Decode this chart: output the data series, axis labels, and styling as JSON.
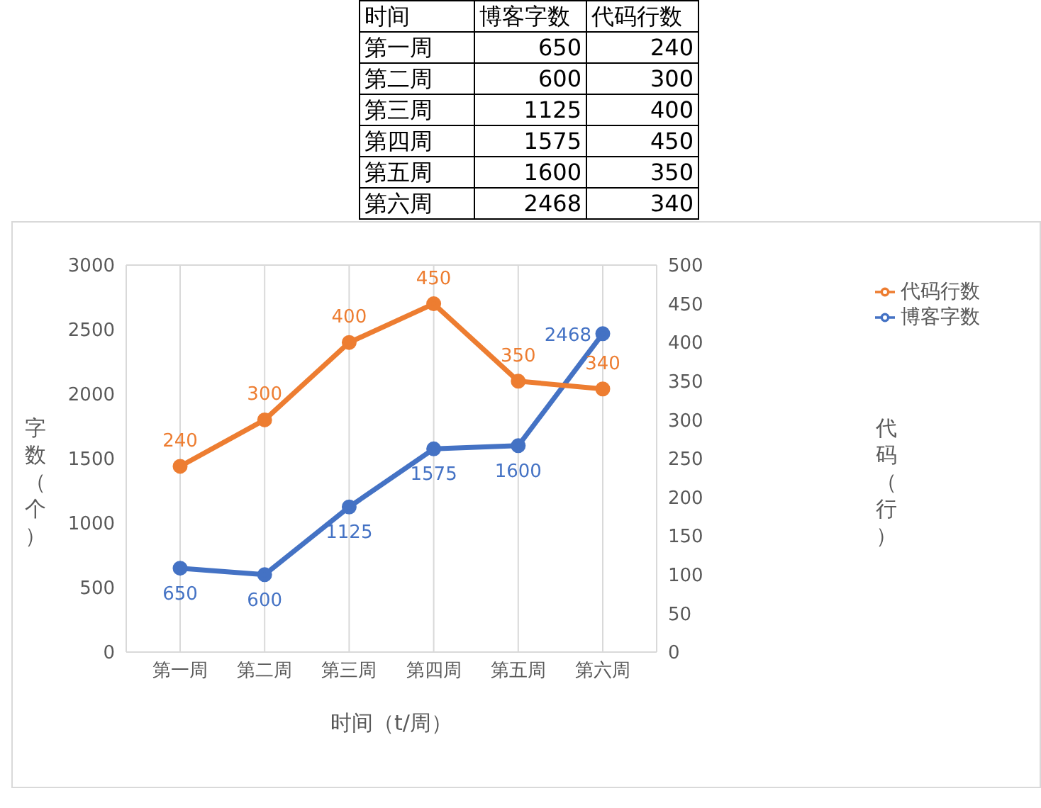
{
  "chart_data": [
    {
      "type": "other",
      "annotations": [
        "时间"
      ],
      "categories": [
        "第一周",
        "第二周",
        "第三周",
        "第四周",
        "第五周",
        "第六周"
      ],
      "series": [
        {
          "name": "博客字数",
          "values": [
            650,
            600,
            1125,
            1575,
            1600,
            2468
          ]
        },
        {
          "name": "代码行数",
          "values": [
            240,
            300,
            400,
            450,
            350,
            340
          ]
        }
      ],
      "data_labels": true
    },
    {
      "type": "line",
      "categories": [
        "第一周",
        "第二周",
        "第三周",
        "第四周",
        "第五周",
        "第六周"
      ],
      "series": [
        {
          "name": "博客字数",
          "color": "#4472c4",
          "values": [
            650,
            600,
            1125,
            1575,
            1600,
            2468
          ]
        },
        {
          "name": "代码行数",
          "color": "#ed7d31",
          "values": [
            240,
            300,
            400,
            450,
            350,
            340
          ],
          "axis": "y2"
        }
      ],
      "xlabel": "时间（t/周）",
      "ylabel": "字数（个）",
      "y2label": "代码（行）",
      "ylim": [
        0,
        3000
      ],
      "yticks": [
        0,
        500,
        1000,
        1500,
        2000,
        2500,
        3000
      ],
      "y2lim": [
        0,
        500
      ],
      "y2ticks": [
        0,
        50,
        100,
        150,
        200,
        250,
        300,
        350,
        400,
        450,
        500
      ],
      "data_labels": true,
      "grid": true,
      "legend": "right",
      "marker": "circle",
      "line_style": "solid"
    }
  ]
}
